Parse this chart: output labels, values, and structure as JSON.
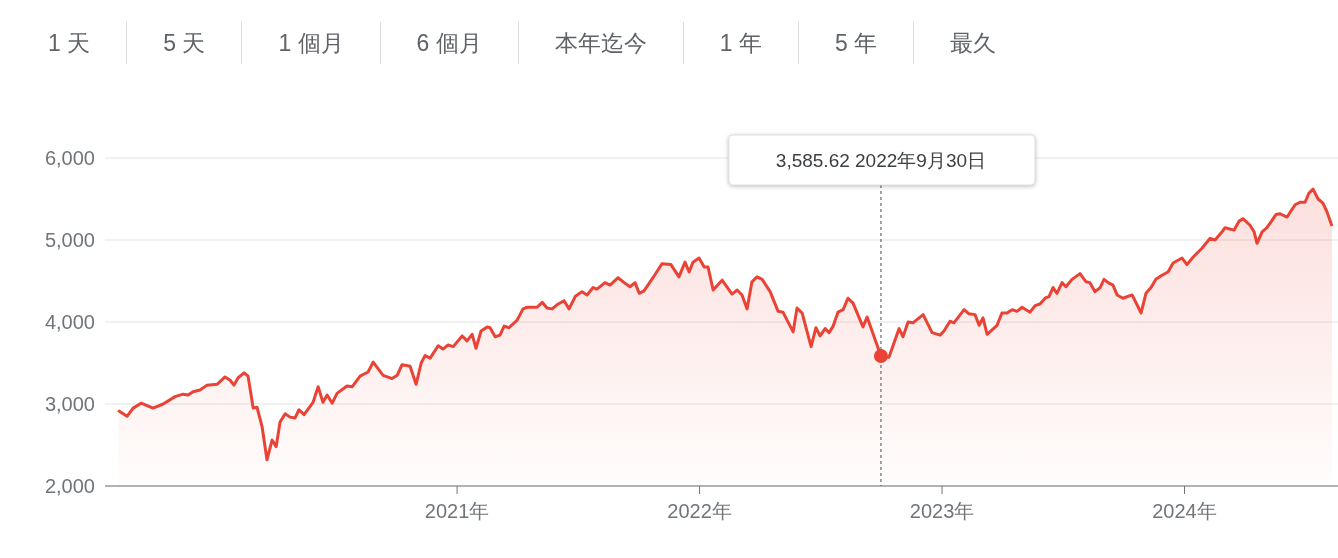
{
  "chart_data": {
    "type": "area",
    "color": "#ea4335",
    "grid": "y",
    "legend": false,
    "marker": "none",
    "xlim": [
      2019.548,
      2024.633
    ],
    "xticks": [
      {
        "value": 2021,
        "label": "2021年"
      },
      {
        "value": 2022,
        "label": "2022年"
      },
      {
        "value": 2023,
        "label": "2023年"
      },
      {
        "value": 2024,
        "label": "2024年"
      }
    ],
    "ylim": [
      2000,
      6000
    ],
    "yticks": [
      {
        "value": 2000,
        "label": "2,000"
      },
      {
        "value": 3000,
        "label": "3,000"
      },
      {
        "value": 4000,
        "label": "4,000"
      },
      {
        "value": 5000,
        "label": "5,000"
      },
      {
        "value": 6000,
        "label": "6,000"
      }
    ],
    "annotations": [
      "1 天",
      "5 天",
      "1 個月",
      "6 個月",
      "本年迄今",
      "1 年",
      "5 年",
      "最久",
      {
        "text": "3,585.62  2022年9月30日",
        "x": 2022.748
      }
    ],
    "x": [
      2019.602,
      2019.639,
      2019.664,
      2019.697,
      2019.746,
      2019.788,
      2019.837,
      2019.87,
      2019.891,
      2019.911,
      2019.94,
      2019.969,
      2020.01,
      2020.043,
      2020.064,
      2020.08,
      2020.097,
      2020.122,
      2020.138,
      2020.159,
      2020.175,
      2020.196,
      2020.216,
      2020.237,
      2020.254,
      2020.27,
      2020.291,
      2020.311,
      2020.332,
      2020.348,
      2020.369,
      2020.406,
      2020.427,
      2020.447,
      2020.464,
      2020.485,
      2020.505,
      2020.546,
      2020.567,
      2020.6,
      2020.633,
      2020.654,
      2020.695,
      2020.732,
      2020.753,
      2020.773,
      2020.806,
      2020.831,
      2020.852,
      2020.868,
      2020.889,
      2020.922,
      2020.942,
      2020.963,
      2020.984,
      2021.021,
      2021.041,
      2021.062,
      2021.078,
      2021.099,
      2021.124,
      2021.136,
      2021.157,
      2021.177,
      2021.194,
      2021.214,
      2021.247,
      2021.272,
      2021.289,
      2021.33,
      2021.351,
      2021.371,
      2021.392,
      2021.412,
      2021.441,
      2021.462,
      2021.487,
      2021.515,
      2021.536,
      2021.561,
      2021.577,
      2021.61,
      2021.631,
      2021.664,
      2021.689,
      2021.713,
      2021.734,
      2021.751,
      2021.771,
      2021.808,
      2021.845,
      2021.882,
      2021.915,
      2021.94,
      2021.957,
      2021.973,
      2021.998,
      2022.019,
      2022.035,
      2022.056,
      2022.093,
      2022.134,
      2022.155,
      2022.175,
      2022.196,
      2022.216,
      2022.237,
      2022.258,
      2022.291,
      2022.324,
      2022.344,
      2022.386,
      2022.402,
      2022.423,
      2022.46,
      2022.48,
      2022.497,
      2022.518,
      2022.534,
      2022.551,
      2022.571,
      2022.592,
      2022.612,
      2022.633,
      2022.674,
      2022.691,
      2022.748,
      2022.781,
      2022.823,
      2022.839,
      2022.86,
      2022.88,
      2022.922,
      2022.959,
      2022.992,
      2023.008,
      2023.033,
      2023.049,
      2023.091,
      2023.111,
      2023.136,
      2023.153,
      2023.169,
      2023.186,
      2023.227,
      2023.247,
      2023.268,
      2023.289,
      2023.309,
      2023.33,
      2023.363,
      2023.384,
      2023.404,
      2023.425,
      2023.441,
      2023.458,
      2023.474,
      2023.495,
      2023.511,
      2023.536,
      2023.569,
      2023.594,
      2023.61,
      2023.631,
      2023.652,
      2023.668,
      2023.685,
      2023.705,
      2023.722,
      2023.746,
      2023.784,
      2023.821,
      2023.841,
      2023.862,
      2023.882,
      2023.907,
      2023.932,
      2023.953,
      2023.99,
      2024.01,
      2024.035,
      2024.072,
      2024.105,
      2024.126,
      2024.155,
      2024.167,
      2024.204,
      2024.225,
      2024.241,
      2024.27,
      2024.287,
      2024.299,
      2024.32,
      2024.34,
      2024.377,
      2024.394,
      2024.423,
      2024.456,
      2024.476,
      2024.497,
      2024.513,
      2024.53,
      2024.551,
      2024.571,
      2024.588,
      2024.608
    ],
    "values": [
      2920,
      2850,
      2950,
      3010,
      2950,
      3000,
      3090,
      3120,
      3110,
      3150,
      3170,
      3230,
      3240,
      3330,
      3290,
      3230,
      3320,
      3380,
      3340,
      2950,
      2960,
      2720,
      2320,
      2560,
      2480,
      2780,
      2880,
      2840,
      2830,
      2930,
      2870,
      3020,
      3210,
      3020,
      3110,
      3010,
      3130,
      3220,
      3210,
      3340,
      3390,
      3510,
      3350,
      3310,
      3350,
      3480,
      3460,
      3240,
      3500,
      3590,
      3560,
      3710,
      3670,
      3720,
      3700,
      3830,
      3770,
      3850,
      3680,
      3890,
      3940,
      3930,
      3820,
      3840,
      3950,
      3930,
      4020,
      4160,
      4180,
      4180,
      4240,
      4170,
      4160,
      4210,
      4260,
      4160,
      4310,
      4370,
      4330,
      4420,
      4400,
      4480,
      4450,
      4540,
      4480,
      4430,
      4480,
      4350,
      4380,
      4540,
      4710,
      4700,
      4550,
      4730,
      4610,
      4730,
      4780,
      4670,
      4670,
      4390,
      4510,
      4340,
      4390,
      4330,
      4160,
      4490,
      4550,
      4520,
      4370,
      4130,
      4120,
      3880,
      4170,
      4110,
      3700,
      3930,
      3830,
      3920,
      3870,
      3950,
      4120,
      4150,
      4290,
      4230,
      3940,
      4060,
      3585.62,
      3570,
      3920,
      3820,
      4000,
      3990,
      4090,
      3870,
      3840,
      3890,
      4010,
      3990,
      4150,
      4100,
      4090,
      3960,
      4050,
      3850,
      3960,
      4110,
      4110,
      4150,
      4130,
      4180,
      4120,
      4200,
      4220,
      4290,
      4310,
      4420,
      4350,
      4480,
      4430,
      4520,
      4590,
      4490,
      4480,
      4370,
      4420,
      4520,
      4480,
      4450,
      4330,
      4290,
      4330,
      4110,
      4350,
      4420,
      4520,
      4570,
      4610,
      4720,
      4780,
      4700,
      4790,
      4900,
      5020,
      5000,
      5100,
      5150,
      5120,
      5230,
      5260,
      5180,
      5100,
      4960,
      5100,
      5150,
      5310,
      5320,
      5280,
      5430,
      5460,
      5460,
      5570,
      5620,
      5500,
      5450,
      5340,
      5170
    ]
  }
}
